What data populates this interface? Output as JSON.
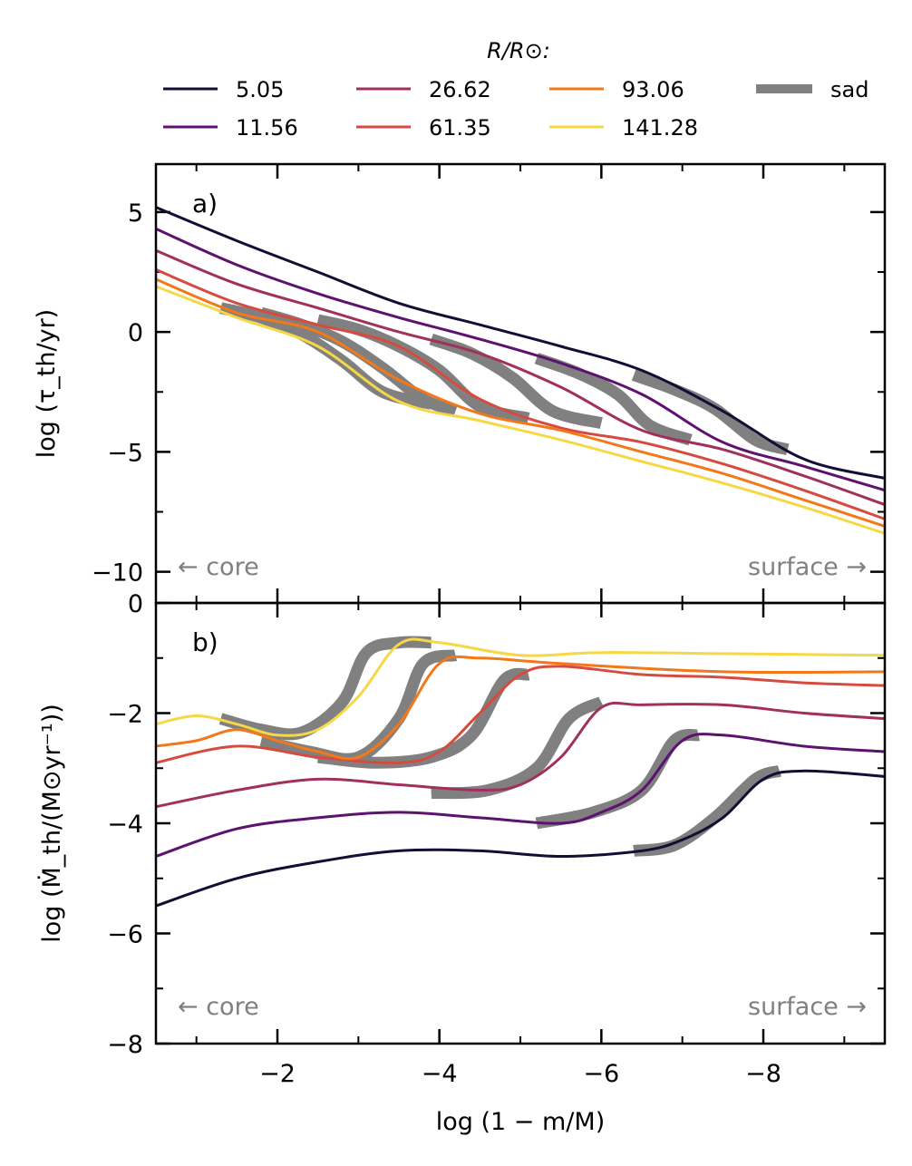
{
  "legend": {
    "title": "R/R⊙:",
    "entries": [
      {
        "label": "5.05",
        "color": "#140e36"
      },
      {
        "label": "11.56",
        "color": "#5c126e"
      },
      {
        "label": "26.62",
        "color": "#a2305e"
      },
      {
        "label": "61.35",
        "color": "#d64b40"
      },
      {
        "label": "93.06",
        "color": "#f37819"
      },
      {
        "label": "141.28",
        "color": "#f6d746"
      },
      {
        "label": "sad",
        "color": "#808080"
      }
    ]
  },
  "panel_a": {
    "label": "a)",
    "core_annotation": "← core",
    "surface_annotation": "surface →"
  },
  "panel_b": {
    "label": "b)",
    "core_annotation": "← core",
    "surface_annotation": "surface →"
  },
  "chart_data": [
    {
      "type": "line",
      "panel": "a",
      "ylabel": "log (τ_th/yr)",
      "xlabel": "",
      "xlim": [
        -0.5,
        -9.5
      ],
      "ylim": [
        -11.3,
        7
      ],
      "yticks": [
        5,
        0,
        -5,
        -10
      ],
      "ytick_labels": [
        "5",
        "0",
        "−5",
        "−10"
      ],
      "series": [
        {
          "name": "5.05",
          "x": [
            -0.5,
            -1.5,
            -2.5,
            -3.5,
            -4.5,
            -5.5,
            -6.5,
            -7.5,
            -8.5,
            -9.5
          ],
          "y": [
            5.2,
            3.8,
            2.5,
            1.2,
            0.3,
            -0.6,
            -1.6,
            -3.3,
            -5.3,
            -6.1
          ]
        },
        {
          "name": "11.56",
          "x": [
            -0.5,
            -1.5,
            -2.5,
            -3.5,
            -4.5,
            -5.5,
            -6.5,
            -7.5,
            -8.5,
            -9.5
          ],
          "y": [
            4.3,
            2.8,
            1.6,
            0.6,
            -0.3,
            -1.3,
            -2.6,
            -4.6,
            -5.6,
            -6.6
          ]
        },
        {
          "name": "26.62",
          "x": [
            -0.5,
            -1.5,
            -2.5,
            -3.5,
            -4.5,
            -5.5,
            -6.5,
            -7.5,
            -8.5,
            -9.5
          ],
          "y": [
            3.4,
            2.0,
            1.0,
            0.0,
            -0.9,
            -2.3,
            -4.1,
            -4.9,
            -6.0,
            -7.2
          ]
        },
        {
          "name": "61.35",
          "x": [
            -0.5,
            -1.5,
            -2.5,
            -3.5,
            -4.5,
            -5.5,
            -6.5,
            -7.5,
            -8.5,
            -9.5
          ],
          "y": [
            2.6,
            1.2,
            0.3,
            -0.6,
            -2.8,
            -4.0,
            -4.6,
            -5.5,
            -6.6,
            -7.8
          ]
        },
        {
          "name": "93.06",
          "x": [
            -0.5,
            -1.5,
            -2.5,
            -3.5,
            -4.5,
            -5.5,
            -6.5,
            -7.5,
            -8.5,
            -9.5
          ],
          "y": [
            2.2,
            0.8,
            0.0,
            -2.0,
            -3.4,
            -4.1,
            -5.0,
            -5.9,
            -7.0,
            -8.1
          ]
        },
        {
          "name": "141.28",
          "x": [
            -0.5,
            -1.5,
            -2.5,
            -3.5,
            -4.5,
            -5.5,
            -6.5,
            -7.5,
            -8.5,
            -9.5
          ],
          "y": [
            1.9,
            0.6,
            -0.6,
            -2.9,
            -3.7,
            -4.5,
            -5.4,
            -6.3,
            -7.3,
            -8.4
          ]
        }
      ],
      "sad_segments": [
        {
          "name": "5.05",
          "x": [
            -6.4,
            -6.9,
            -7.4,
            -7.9,
            -8.3
          ],
          "y": [
            -1.8,
            -2.4,
            -3.2,
            -4.5,
            -4.9
          ]
        },
        {
          "name": "11.56",
          "x": [
            -5.2,
            -5.7,
            -6.2,
            -6.6,
            -7.1
          ],
          "y": [
            -1.1,
            -1.7,
            -2.6,
            -3.9,
            -4.5
          ]
        },
        {
          "name": "26.62",
          "x": [
            -3.9,
            -4.4,
            -4.9,
            -5.4,
            -6.0
          ],
          "y": [
            -0.3,
            -0.9,
            -1.9,
            -3.3,
            -3.8
          ]
        },
        {
          "name": "61.35",
          "x": [
            -2.5,
            -3.0,
            -3.5,
            -4.0,
            -4.5,
            -5.1
          ],
          "y": [
            0.5,
            0.1,
            -0.6,
            -1.6,
            -3.1,
            -3.6
          ]
        },
        {
          "name": "93.06",
          "x": [
            -1.8,
            -2.3,
            -2.8,
            -3.3,
            -3.8,
            -4.2
          ],
          "y": [
            0.8,
            0.3,
            -0.4,
            -1.5,
            -2.8,
            -3.3
          ]
        },
        {
          "name": "141.28",
          "x": [
            -1.3,
            -1.8,
            -2.3,
            -2.8,
            -3.3,
            -3.9
          ],
          "y": [
            1.0,
            0.6,
            -0.1,
            -1.2,
            -2.5,
            -3.0
          ]
        }
      ]
    },
    {
      "type": "line",
      "panel": "b",
      "ylabel": "log (Ṁ_th/(M⊙yr⁻¹))",
      "xlabel": "log (1 − m/M)",
      "xlim": [
        -0.5,
        -9.5
      ],
      "ylim": [
        -8,
        0
      ],
      "yticks": [
        0,
        -2,
        -4,
        -6,
        -8
      ],
      "ytick_labels": [
        "0",
        "−2",
        "−4",
        "−6",
        "−8"
      ],
      "xticks": [
        -2,
        -4,
        -6,
        -8
      ],
      "xtick_labels": [
        "−2",
        "−4",
        "−6",
        "−8"
      ],
      "series": [
        {
          "name": "5.05",
          "x": [
            -0.5,
            -1.5,
            -2.5,
            -3.5,
            -4.5,
            -5.5,
            -6.5,
            -7.0,
            -7.5,
            -8.0,
            -8.5,
            -9.5
          ],
          "y": [
            -5.5,
            -5.0,
            -4.7,
            -4.5,
            -4.5,
            -4.6,
            -4.5,
            -4.3,
            -3.9,
            -3.2,
            -3.05,
            -3.15
          ]
        },
        {
          "name": "11.56",
          "x": [
            -0.5,
            -1.5,
            -2.5,
            -3.5,
            -4.5,
            -5.5,
            -6.0,
            -6.5,
            -7.0,
            -7.5,
            -8.5,
            -9.5
          ],
          "y": [
            -4.6,
            -4.1,
            -3.9,
            -3.8,
            -3.9,
            -4.0,
            -3.8,
            -3.4,
            -2.5,
            -2.4,
            -2.6,
            -2.7
          ]
        },
        {
          "name": "26.62",
          "x": [
            -0.5,
            -1.5,
            -2.5,
            -3.5,
            -4.5,
            -5.0,
            -5.5,
            -6.0,
            -6.5,
            -7.5,
            -8.5,
            -9.5
          ],
          "y": [
            -3.7,
            -3.4,
            -3.2,
            -3.3,
            -3.4,
            -3.3,
            -2.8,
            -1.9,
            -1.85,
            -1.85,
            -2.0,
            -2.1
          ]
        },
        {
          "name": "61.35",
          "x": [
            -0.5,
            -1.5,
            -2.5,
            -3.5,
            -4.0,
            -4.5,
            -5.0,
            -5.5,
            -6.5,
            -7.5,
            -8.5,
            -9.5
          ],
          "y": [
            -2.9,
            -2.6,
            -2.8,
            -2.9,
            -2.7,
            -2.0,
            -1.3,
            -1.15,
            -1.3,
            -1.35,
            -1.45,
            -1.5
          ]
        },
        {
          "name": "93.06",
          "x": [
            -0.5,
            -1.0,
            -1.5,
            -2.0,
            -2.5,
            -3.0,
            -3.5,
            -4.0,
            -4.5,
            -5.5,
            -7.5,
            -9.5
          ],
          "y": [
            -2.6,
            -2.5,
            -2.3,
            -2.5,
            -2.7,
            -2.8,
            -2.2,
            -1.1,
            -1.0,
            -1.1,
            -1.25,
            -1.25
          ]
        },
        {
          "name": "141.28",
          "x": [
            -0.5,
            -1.0,
            -1.5,
            -2.0,
            -2.5,
            -3.0,
            -3.5,
            -4.0,
            -5.0,
            -6.0,
            -7.5,
            -9.5
          ],
          "y": [
            -2.2,
            -2.05,
            -2.2,
            -2.4,
            -2.3,
            -1.7,
            -0.75,
            -0.72,
            -0.95,
            -0.9,
            -0.92,
            -0.95
          ]
        }
      ],
      "sad_segments": [
        {
          "name": "5.05",
          "x": [
            -6.4,
            -6.9,
            -7.4,
            -7.9,
            -8.2
          ],
          "y": [
            -4.5,
            -4.4,
            -3.9,
            -3.2,
            -3.05
          ]
        },
        {
          "name": "11.56",
          "x": [
            -5.2,
            -5.9,
            -6.5,
            -6.9,
            -7.2
          ],
          "y": [
            -4.0,
            -3.8,
            -3.4,
            -2.5,
            -2.4
          ]
        },
        {
          "name": "26.62",
          "x": [
            -3.9,
            -4.6,
            -5.2,
            -5.6,
            -6.0
          ],
          "y": [
            -3.45,
            -3.4,
            -3.0,
            -2.1,
            -1.8
          ]
        },
        {
          "name": "61.35",
          "x": [
            -2.5,
            -3.2,
            -3.9,
            -4.4,
            -4.8,
            -5.1
          ],
          "y": [
            -2.8,
            -2.9,
            -2.8,
            -2.4,
            -1.4,
            -1.3
          ]
        },
        {
          "name": "93.06",
          "x": [
            -1.8,
            -2.4,
            -3.0,
            -3.5,
            -3.8,
            -4.2
          ],
          "y": [
            -2.5,
            -2.7,
            -2.8,
            -2.1,
            -1.1,
            -0.95
          ]
        },
        {
          "name": "141.28",
          "x": [
            -1.3,
            -1.8,
            -2.3,
            -2.8,
            -3.1,
            -3.5,
            -3.9
          ],
          "y": [
            -2.1,
            -2.3,
            -2.35,
            -1.8,
            -0.9,
            -0.72,
            -0.72
          ]
        }
      ]
    }
  ]
}
